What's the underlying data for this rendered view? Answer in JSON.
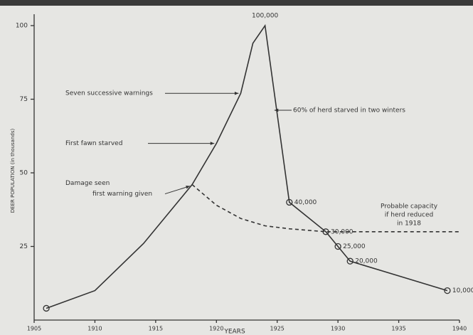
{
  "chart_data": {
    "type": "line",
    "x_label": "YEARS",
    "y_label": "DEER POPULATION (in thousands)",
    "xlim": [
      1905,
      1940
    ],
    "xticks": [
      1905,
      1910,
      1915,
      1920,
      1925,
      1930,
      1935,
      1940
    ],
    "ylim": [
      0,
      100
    ],
    "yticks": [
      25,
      50,
      75,
      100
    ],
    "series": [
      {
        "name": "Deer population",
        "color": "#333333",
        "style": "solid",
        "x": [
          1906,
          1910,
          1914,
          1918,
          1920,
          1922,
          1923,
          1924,
          1926,
          1929,
          1930,
          1931,
          1939
        ],
        "values": [
          4,
          10,
          26,
          46,
          60,
          77,
          94,
          100,
          40,
          30,
          25,
          20,
          10
        ],
        "value_labels": [
          null,
          null,
          null,
          null,
          null,
          null,
          null,
          "100,000",
          "40,000",
          "30,000",
          "25,000",
          "20,000",
          "10,000"
        ],
        "markers": [
          true,
          false,
          false,
          false,
          false,
          false,
          false,
          false,
          true,
          true,
          true,
          true,
          true
        ]
      },
      {
        "name": "Probable capacity",
        "color": "#333333",
        "style": "dashed",
        "x": [
          1918,
          1920,
          1922,
          1924,
          1926,
          1929,
          1935,
          1940
        ],
        "values": [
          46,
          39,
          34.5,
          32,
          31,
          30,
          30,
          30
        ]
      }
    ],
    "annotations": [
      "Seven successive warnings",
      "First fawn starved",
      "Damage seen",
      "first warning given",
      "60% of herd starved in two winters",
      "Probable capacity",
      "if herd reduced",
      "in 1918"
    ]
  }
}
